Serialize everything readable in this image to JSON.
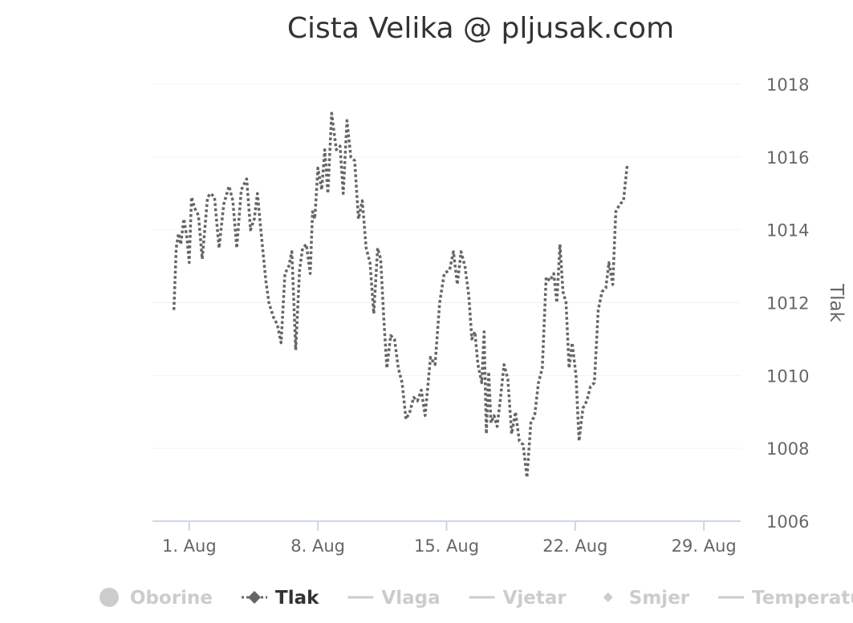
{
  "colors": {
    "series": "#666666",
    "legend_active": "#333333",
    "legend_hidden": "#cccccc",
    "grid": "#f2f2f2",
    "axis": "#ccd6eb"
  },
  "chart_data": {
    "type": "line",
    "title": "Cista Velika @ pljusak.com",
    "ylabel": "Tlak",
    "xlabel": "",
    "y_axis_side": "right",
    "ylim": [
      1006,
      1018
    ],
    "y_ticks": [
      1006,
      1008,
      1010,
      1012,
      1014,
      1016,
      1018
    ],
    "xlim": [
      "2015-07-30",
      "2015-08-31"
    ],
    "x_ticks": [
      {
        "date": "2015-08-01",
        "label": "1. Aug"
      },
      {
        "date": "2015-08-08",
        "label": "8. Aug"
      },
      {
        "date": "2015-08-15",
        "label": "15. Aug"
      },
      {
        "date": "2015-08-22",
        "label": "22. Aug"
      },
      {
        "date": "2015-08-29",
        "label": "29. Aug"
      }
    ],
    "grid": true,
    "legend_position": "bottom",
    "series": [
      {
        "name": "Tlak",
        "line_style": "dotted",
        "points": [
          [
            "2015-07-31 04:00",
            1011.8
          ],
          [
            "2015-07-31 07:00",
            1013.5
          ],
          [
            "2015-07-31 10:00",
            1013.9
          ],
          [
            "2015-07-31 13:00",
            1013.6
          ],
          [
            "2015-07-31 17:00",
            1014.3
          ],
          [
            "2015-07-31 21:00",
            1013.8
          ],
          [
            "2015-08-01 00:00",
            1013.1
          ],
          [
            "2015-08-01 03:00",
            1014.9
          ],
          [
            "2015-08-01 07:00",
            1014.6
          ],
          [
            "2015-08-01 12:00",
            1014.4
          ],
          [
            "2015-08-01 17:00",
            1013.2
          ],
          [
            "2015-08-02 00:00",
            1014.9
          ],
          [
            "2015-08-02 04:00",
            1015.0
          ],
          [
            "2015-08-02 09:00",
            1014.9
          ],
          [
            "2015-08-02 15:00",
            1013.5
          ],
          [
            "2015-08-02 21:00",
            1014.7
          ],
          [
            "2015-08-03 04:00",
            1015.2
          ],
          [
            "2015-08-03 09:00",
            1014.8
          ],
          [
            "2015-08-03 14:00",
            1013.5
          ],
          [
            "2015-08-03 20:00",
            1015.1
          ],
          [
            "2015-08-04 03:00",
            1015.4
          ],
          [
            "2015-08-04 08:00",
            1014.0
          ],
          [
            "2015-08-04 13:00",
            1014.3
          ],
          [
            "2015-08-04 17:00",
            1015.0
          ],
          [
            "2015-08-04 21:00",
            1014.1
          ],
          [
            "2015-08-05 04:00",
            1012.6
          ],
          [
            "2015-08-05 08:00",
            1012.0
          ],
          [
            "2015-08-05 14:00",
            1011.6
          ],
          [
            "2015-08-05 19:00",
            1011.4
          ],
          [
            "2015-08-06 00:00",
            1010.9
          ],
          [
            "2015-08-06 05:00",
            1012.8
          ],
          [
            "2015-08-06 10:00",
            1013.0
          ],
          [
            "2015-08-06 14:00",
            1013.4
          ],
          [
            "2015-08-06 19:00",
            1010.7
          ],
          [
            "2015-08-07 00:00",
            1012.9
          ],
          [
            "2015-08-07 04:00",
            1013.5
          ],
          [
            "2015-08-07 09:00",
            1013.6
          ],
          [
            "2015-08-07 14:00",
            1012.8
          ],
          [
            "2015-08-07 17:00",
            1014.5
          ],
          [
            "2015-08-07 20:00",
            1014.3
          ],
          [
            "2015-08-08 00:00",
            1015.7
          ],
          [
            "2015-08-08 05:00",
            1015.1
          ],
          [
            "2015-08-08 09:00",
            1016.2
          ],
          [
            "2015-08-08 13:00",
            1015.0
          ],
          [
            "2015-08-08 18:00",
            1017.2
          ],
          [
            "2015-08-09 00:00",
            1016.2
          ],
          [
            "2015-08-09 05:00",
            1016.3
          ],
          [
            "2015-08-09 09:00",
            1015.0
          ],
          [
            "2015-08-09 14:00",
            1017.0
          ],
          [
            "2015-08-09 19:00",
            1016.0
          ],
          [
            "2015-08-10 00:00",
            1015.9
          ],
          [
            "2015-08-10 05:00",
            1014.3
          ],
          [
            "2015-08-10 10:00",
            1014.8
          ],
          [
            "2015-08-10 15:00",
            1013.5
          ],
          [
            "2015-08-10 20:00",
            1013.1
          ],
          [
            "2015-08-11 01:00",
            1011.7
          ],
          [
            "2015-08-11 06:00",
            1013.5
          ],
          [
            "2015-08-11 10:00",
            1013.2
          ],
          [
            "2015-08-11 14:00",
            1011.6
          ],
          [
            "2015-08-11 18:00",
            1010.2
          ],
          [
            "2015-08-11 23:00",
            1011.1
          ],
          [
            "2015-08-12 04:00",
            1011.0
          ],
          [
            "2015-08-12 09:00",
            1010.2
          ],
          [
            "2015-08-12 14:00",
            1009.8
          ],
          [
            "2015-08-12 19:00",
            1008.8
          ],
          [
            "2015-08-13 00:00",
            1009.0
          ],
          [
            "2015-08-13 05:00",
            1009.4
          ],
          [
            "2015-08-13 10:00",
            1009.3
          ],
          [
            "2015-08-13 15:00",
            1009.6
          ],
          [
            "2015-08-13 20:00",
            1008.9
          ],
          [
            "2015-08-14 03:00",
            1010.5
          ],
          [
            "2015-08-14 09:00",
            1010.3
          ],
          [
            "2015-08-14 15:00",
            1012.0
          ],
          [
            "2015-08-14 21:00",
            1012.8
          ],
          [
            "2015-08-15 04:00",
            1012.9
          ],
          [
            "2015-08-15 09:00",
            1013.4
          ],
          [
            "2015-08-15 14:00",
            1012.5
          ],
          [
            "2015-08-15 19:00",
            1013.4
          ],
          [
            "2015-08-16 00:00",
            1013.0
          ],
          [
            "2015-08-16 05:00",
            1012.2
          ],
          [
            "2015-08-16 09:00",
            1011.0
          ],
          [
            "2015-08-16 13:00",
            1011.2
          ],
          [
            "2015-08-16 17:00",
            1010.3
          ],
          [
            "2015-08-16 22:00",
            1009.8
          ],
          [
            "2015-08-17 01:00",
            1011.2
          ],
          [
            "2015-08-17 04:00",
            1008.4
          ],
          [
            "2015-08-17 07:00",
            1010.1
          ],
          [
            "2015-08-17 10:00",
            1008.7
          ],
          [
            "2015-08-17 14:00",
            1008.9
          ],
          [
            "2015-08-17 18:00",
            1008.6
          ],
          [
            "2015-08-17 22:00",
            1009.3
          ],
          [
            "2015-08-18 03:00",
            1010.3
          ],
          [
            "2015-08-18 08:00",
            1009.9
          ],
          [
            "2015-08-18 13:00",
            1008.4
          ],
          [
            "2015-08-18 18:00",
            1009.0
          ],
          [
            "2015-08-18 23:00",
            1008.2
          ],
          [
            "2015-08-19 04:00",
            1008.1
          ],
          [
            "2015-08-19 09:00",
            1007.2
          ],
          [
            "2015-08-19 14:00",
            1008.7
          ],
          [
            "2015-08-19 19:00",
            1008.9
          ],
          [
            "2015-08-20 00:00",
            1009.8
          ],
          [
            "2015-08-20 05:00",
            1010.2
          ],
          [
            "2015-08-20 10:00",
            1012.7
          ],
          [
            "2015-08-20 15:00",
            1012.6
          ],
          [
            "2015-08-20 20:00",
            1012.8
          ],
          [
            "2015-08-21 00:00",
            1012.0
          ],
          [
            "2015-08-21 04:00",
            1013.6
          ],
          [
            "2015-08-21 08:00",
            1012.3
          ],
          [
            "2015-08-21 12:00",
            1012.0
          ],
          [
            "2015-08-21 16:00",
            1010.2
          ],
          [
            "2015-08-21 20:00",
            1010.9
          ],
          [
            "2015-08-22 01:00",
            1010.0
          ],
          [
            "2015-08-22 05:00",
            1008.2
          ],
          [
            "2015-08-22 10:00",
            1009.1
          ],
          [
            "2015-08-22 15:00",
            1009.3
          ],
          [
            "2015-08-22 20:00",
            1009.7
          ],
          [
            "2015-08-23 01:00",
            1009.8
          ],
          [
            "2015-08-23 06:00",
            1011.8
          ],
          [
            "2015-08-23 11:00",
            1012.3
          ],
          [
            "2015-08-23 16:00",
            1012.4
          ],
          [
            "2015-08-23 20:00",
            1013.1
          ],
          [
            "2015-08-24 01:00",
            1012.5
          ],
          [
            "2015-08-24 05:00",
            1014.5
          ],
          [
            "2015-08-24 10:00",
            1014.7
          ],
          [
            "2015-08-24 15:00",
            1014.8
          ],
          [
            "2015-08-24 20:00",
            1015.8
          ]
        ]
      }
    ]
  },
  "legend": {
    "items": [
      {
        "label": "Oborine",
        "symbol": "circle",
        "active": false
      },
      {
        "label": "Tlak",
        "symbol": "diamond-dotted-line",
        "active": true
      },
      {
        "label": "Vlaga",
        "symbol": "line",
        "active": false
      },
      {
        "label": "Vjetar",
        "symbol": "line",
        "active": false
      },
      {
        "label": "Smjer",
        "symbol": "diamond",
        "active": false
      },
      {
        "label": "Temperatu",
        "symbol": "line",
        "active": false
      }
    ]
  }
}
